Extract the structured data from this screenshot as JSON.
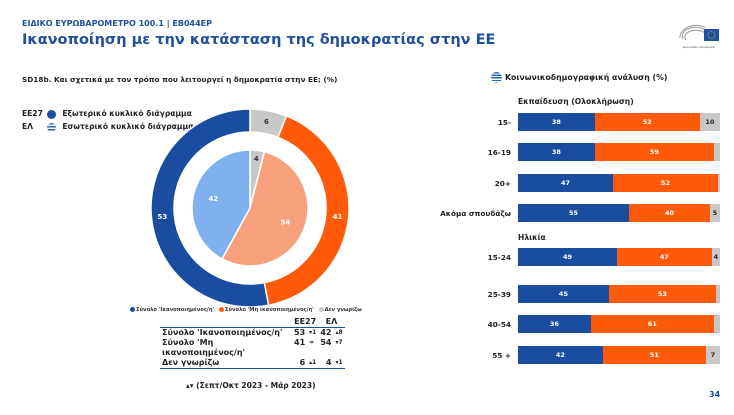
{
  "header": {
    "supertitle": "ΕΙΔΙΚΟ ΕΥΡΩΒΑΡΟΜΕΤΡΟ 100.1 | EB044EP",
    "title": "Ικανοποίηση με την κατάσταση της δημοκρατίας στην ΕΕ",
    "logo_text": "Ευρωπαϊκό Κοινοβούλιο"
  },
  "question": "SD18b. Και σχετικά με τον τρόπο που λειτουργεί η δημοκρατία στην ΕΕ; (%)",
  "colors": {
    "satisfied": "#1a4da0",
    "not_satisfied": "#ff5a0a",
    "dont_know": "#c8c8c8",
    "satisfied_inner": "#7fb1f0",
    "not_satisfied_inner": "#f7a07c",
    "title": "#1f4fa0"
  },
  "chart_data": [
    {
      "type": "pie",
      "variant": "nested-donut",
      "legend": [
        {
          "code": "ΕΕ27",
          "label": "Εξωτερικό κυκλικό διάγραμμα",
          "icon": "eu-dot-icon"
        },
        {
          "code": "ΕΛ",
          "label": "Εσωτερικό κυκλικό διάγραμμα",
          "icon": "greek-flag-icon"
        }
      ],
      "categories": [
        "Σύνολο 'Ικανοποιημένος/η'",
        "Σύνολο 'Μη ικανοποιημένος/η'",
        "Δεν γνωρίζω"
      ],
      "series": [
        {
          "name": "ΕΕ27",
          "values": [
            53,
            41,
            6
          ]
        },
        {
          "name": "ΕΛ",
          "values": [
            42,
            54,
            4
          ]
        }
      ],
      "table": {
        "headers": [
          "ΕΕ27",
          "ΕΛ"
        ],
        "rows": [
          {
            "label": "Σύνολο 'Ικανοποιημένος/η'",
            "eu": "53",
            "eu_tr": "▾1",
            "el": "42",
            "el_tr": "▴8"
          },
          {
            "label": "Σύνολο 'Μη ικανοποιημένος/η'",
            "eu": "41",
            "eu_tr": "=",
            "el": "54",
            "el_tr": "▾7"
          },
          {
            "label": "Δεν γνωρίζω",
            "eu": "6",
            "eu_tr": "▴1",
            "el": "4",
            "el_tr": "▾1"
          }
        ]
      },
      "note": "▴▾ (Σεπτ/Οκτ 2023 - Μάρ 2023)"
    },
    {
      "type": "bar",
      "orientation": "horizontal",
      "stacked": true,
      "title": "Κοινωνικοδημογραφική ανάλυση (%)",
      "groups": [
        {
          "name": "Εκπαίδευση (Ολοκλήρωση)",
          "categories": [
            "15-",
            "16-19",
            "20+",
            "Ακόμα σπουδάζω"
          ],
          "values": [
            [
              38,
              52,
              10
            ],
            [
              38,
              59,
              3
            ],
            [
              47,
              52,
              1
            ],
            [
              55,
              40,
              5
            ]
          ]
        },
        {
          "name": "Ηλικία",
          "categories": [
            "15-24",
            "25-39",
            "40-54",
            "55 +"
          ],
          "values": [
            [
              49,
              47,
              4
            ],
            [
              45,
              53,
              2
            ],
            [
              36,
              61,
              3
            ],
            [
              42,
              51,
              7
            ]
          ]
        }
      ],
      "label_threshold": 4
    }
  ],
  "page_number": "34"
}
